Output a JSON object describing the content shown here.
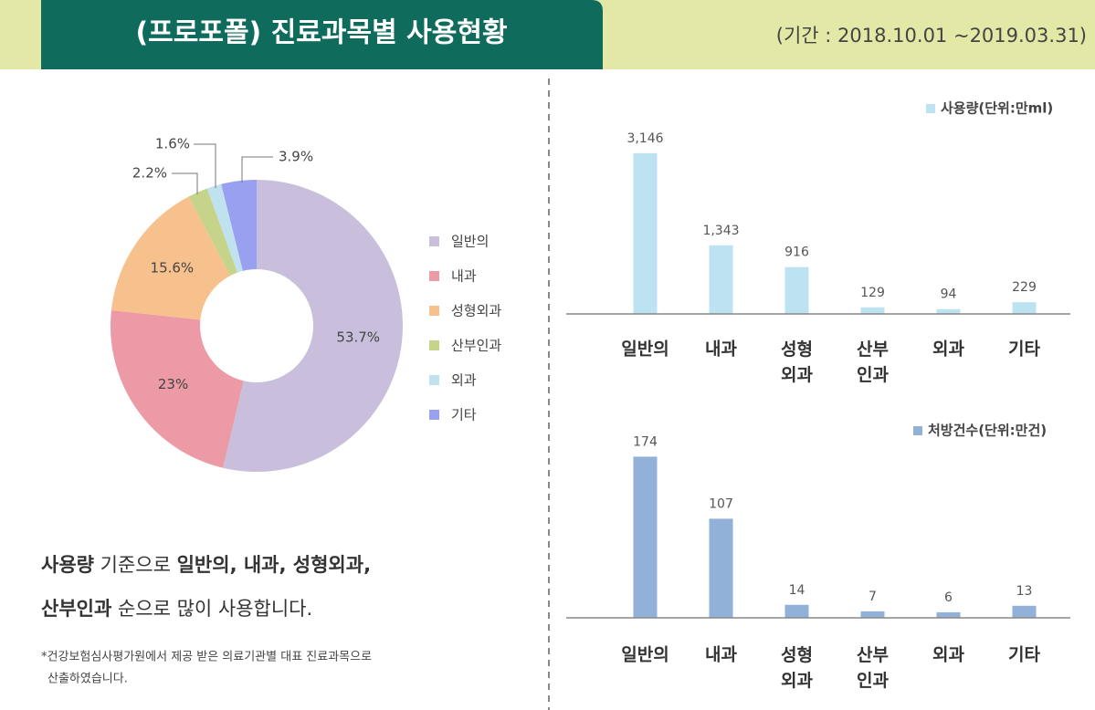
{
  "header": {
    "title": "(프로포폴) 진료과목별 사용현황",
    "period": "(기간 : 2018.10.01 ~2019.03.31)"
  },
  "chart_data": [
    {
      "type": "pie",
      "categories": [
        "일반의",
        "내과",
        "성형외과",
        "산부인과",
        "외과",
        "기타"
      ],
      "values": [
        53.7,
        23,
        15.6,
        2.2,
        1.6,
        3.9
      ],
      "value_labels": [
        "53.7%",
        "23%",
        "15.6%",
        "2.2%",
        "1.6%",
        "3.9%"
      ],
      "colors": [
        "#c9bfdc",
        "#ec9aa5",
        "#f7c18e",
        "#c5d48a",
        "#bfe2ee",
        "#9aa0f0"
      ]
    },
    {
      "type": "bar",
      "categories": [
        "일반의",
        "내과",
        "성형외과",
        "산부인과",
        "외과",
        "기타"
      ],
      "series": [
        {
          "name": "사용량(단위:만ml)",
          "color": "#bde3f3",
          "values": [
            3146,
            1343,
            916,
            129,
            94,
            229
          ],
          "value_labels": [
            "3,146",
            "1,343",
            "916",
            "129",
            "94",
            "229"
          ]
        }
      ],
      "ylim": [
        0,
        3500
      ]
    },
    {
      "type": "bar",
      "categories": [
        "일반의",
        "내과",
        "성형외과",
        "산부인과",
        "외과",
        "기타"
      ],
      "series": [
        {
          "name": "처방건수(단위:만건)",
          "color": "#92b1d9",
          "values": [
            174,
            107,
            14,
            7,
            6,
            13
          ],
          "value_labels": [
            "174",
            "107",
            "14",
            "7",
            "6",
            "13"
          ]
        }
      ],
      "ylim": [
        0,
        200
      ]
    }
  ],
  "summary": {
    "lines": [
      [
        {
          "text": "사용량",
          "bold": true
        },
        {
          "text": " 기준으로 ",
          "bold": false
        },
        {
          "text": "일반의, 내과, 성형외과,",
          "bold": true
        }
      ],
      [
        {
          "text": "산부인과",
          "bold": true
        },
        {
          "text": " 순으로 많이 사용합니다.",
          "bold": false
        }
      ]
    ]
  },
  "footnote": [
    "*건강보험심사평가원에서 제공 받은 의료기관별 대표 진료과목으로",
    "산출하였습니다."
  ]
}
